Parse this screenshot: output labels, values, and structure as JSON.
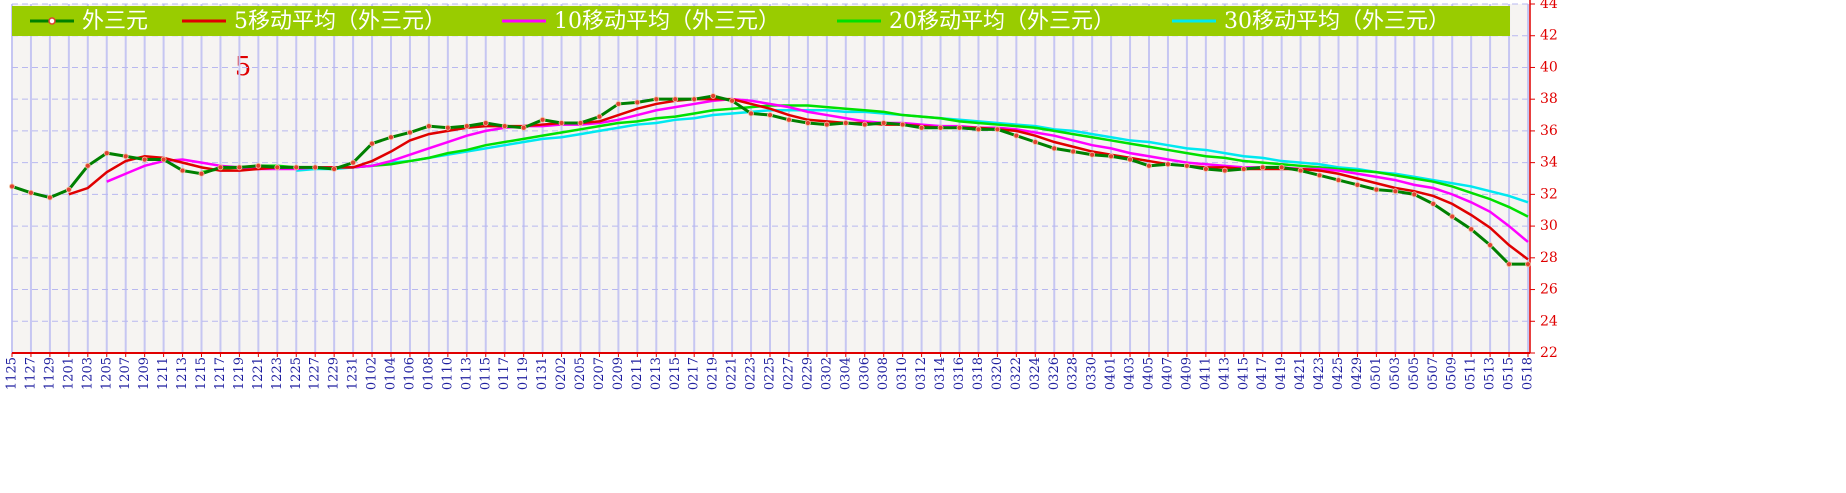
{
  "chart_data": {
    "type": "line",
    "annotation": "5",
    "categories": [
      "1125",
      "1127",
      "1129",
      "1201",
      "1203",
      "1205",
      "1207",
      "1209",
      "1211",
      "1213",
      "1215",
      "1217",
      "1219",
      "1221",
      "1223",
      "1225",
      "1227",
      "1229",
      "1231",
      "0102",
      "0104",
      "0106",
      "0108",
      "0110",
      "0113",
      "0115",
      "0117",
      "0119",
      "0131",
      "0202",
      "0205",
      "0207",
      "0209",
      "0211",
      "0213",
      "0215",
      "0217",
      "0219",
      "0221",
      "0223",
      "0225",
      "0227",
      "0229",
      "0302",
      "0304",
      "0306",
      "0308",
      "0310",
      "0312",
      "0314",
      "0316",
      "0318",
      "0320",
      "0322",
      "0324",
      "0326",
      "0328",
      "0330",
      "0401",
      "0403",
      "0405",
      "0407",
      "0409",
      "0411",
      "0413",
      "0415",
      "0417",
      "0419",
      "0421",
      "0423",
      "0425",
      "0429",
      "0501",
      "0503",
      "0505",
      "0507",
      "0509",
      "0511",
      "0513",
      "0515",
      "0518"
    ],
    "series": [
      {
        "name": "外三元",
        "color": "#008000",
        "marker": "circle",
        "values": [
          32.5,
          32.1,
          31.8,
          32.3,
          33.8,
          34.6,
          34.4,
          34.2,
          34.2,
          33.5,
          33.3,
          33.7,
          33.7,
          33.8,
          33.7,
          33.7,
          33.7,
          33.6,
          34.0,
          35.2,
          35.6,
          35.9,
          36.3,
          36.2,
          36.3,
          36.5,
          36.3,
          36.2,
          36.7,
          36.5,
          36.5,
          36.9,
          37.7,
          37.8,
          38.0,
          38.0,
          38.0,
          38.2,
          37.9,
          37.1,
          37.0,
          36.7,
          36.5,
          36.4,
          36.5,
          36.4,
          36.5,
          36.4,
          36.2,
          36.2,
          36.2,
          36.1,
          36.1,
          35.7,
          35.3,
          34.9,
          34.7,
          34.5,
          34.4,
          34.2,
          33.8,
          33.9,
          33.8,
          33.6,
          33.5,
          33.6,
          33.7,
          33.7,
          33.5,
          33.2,
          32.9,
          32.6,
          32.3,
          32.2,
          32.0,
          31.4,
          30.6,
          29.8,
          28.8,
          27.6,
          27.6
        ]
      },
      {
        "name": "5移动平均（外三元）",
        "color": "#e00000",
        "values": [
          null,
          null,
          null,
          32.0,
          32.4,
          33.4,
          34.1,
          34.4,
          34.3,
          34.0,
          33.7,
          33.5,
          33.5,
          33.6,
          33.7,
          33.7,
          33.7,
          33.7,
          33.7,
          34.1,
          34.7,
          35.4,
          35.8,
          36.0,
          36.2,
          36.3,
          36.3,
          36.3,
          36.4,
          36.5,
          36.5,
          36.6,
          37.0,
          37.4,
          37.7,
          37.9,
          38.0,
          38.0,
          38.0,
          37.7,
          37.4,
          37.0,
          36.7,
          36.6,
          36.5,
          36.5,
          36.4,
          36.4,
          36.3,
          36.2,
          36.2,
          36.2,
          36.1,
          36.0,
          35.7,
          35.3,
          35.0,
          34.7,
          34.5,
          34.3,
          34.1,
          33.9,
          33.8,
          33.7,
          33.7,
          33.6,
          33.6,
          33.6,
          33.6,
          33.5,
          33.3,
          33.0,
          32.7,
          32.4,
          32.2,
          31.9,
          31.4,
          30.7,
          29.9,
          28.8,
          27.9
        ]
      },
      {
        "name": "10移动平均（外三元）",
        "color": "#ff00ff",
        "values": [
          null,
          null,
          null,
          null,
          null,
          32.8,
          33.3,
          33.8,
          34.1,
          34.2,
          34.0,
          33.8,
          33.7,
          33.6,
          33.6,
          33.6,
          33.7,
          33.7,
          33.7,
          33.8,
          34.1,
          34.5,
          34.9,
          35.3,
          35.7,
          36.0,
          36.2,
          36.3,
          36.3,
          36.4,
          36.4,
          36.5,
          36.7,
          37.0,
          37.3,
          37.5,
          37.7,
          37.9,
          38.0,
          37.9,
          37.7,
          37.5,
          37.2,
          37.0,
          36.8,
          36.6,
          36.5,
          36.5,
          36.4,
          36.3,
          36.3,
          36.2,
          36.2,
          36.1,
          35.9,
          35.7,
          35.4,
          35.1,
          34.9,
          34.6,
          34.4,
          34.2,
          34.0,
          33.9,
          33.8,
          33.7,
          33.7,
          33.7,
          33.6,
          33.6,
          33.5,
          33.3,
          33.1,
          32.9,
          32.6,
          32.4,
          32.0,
          31.5,
          30.9,
          30.0,
          29.0
        ]
      },
      {
        "name": "20移动平均（外三元）",
        "color": "#00e000",
        "values": [
          null,
          null,
          null,
          null,
          null,
          null,
          null,
          null,
          null,
          null,
          33.4,
          33.6,
          33.7,
          33.8,
          33.8,
          33.7,
          33.7,
          33.7,
          33.7,
          33.8,
          33.9,
          34.1,
          34.3,
          34.6,
          34.8,
          35.1,
          35.3,
          35.5,
          35.7,
          35.9,
          36.1,
          36.3,
          36.5,
          36.6,
          36.8,
          36.9,
          37.1,
          37.3,
          37.4,
          37.5,
          37.6,
          37.6,
          37.6,
          37.5,
          37.4,
          37.3,
          37.2,
          37.0,
          36.9,
          36.8,
          36.6,
          36.5,
          36.4,
          36.3,
          36.2,
          36.0,
          35.8,
          35.6,
          35.4,
          35.2,
          35.0,
          34.8,
          34.6,
          34.4,
          34.3,
          34.1,
          34.0,
          33.9,
          33.8,
          33.7,
          33.6,
          33.5,
          33.4,
          33.2,
          33.0,
          32.8,
          32.5,
          32.1,
          31.7,
          31.2,
          30.6
        ]
      },
      {
        "name": "30移动平均（外三元）",
        "color": "#00e8f0",
        "values": [
          null,
          null,
          null,
          null,
          null,
          null,
          null,
          null,
          null,
          null,
          null,
          null,
          null,
          null,
          null,
          33.5,
          33.6,
          33.6,
          33.7,
          33.8,
          34.0,
          34.1,
          34.3,
          34.5,
          34.7,
          34.9,
          35.1,
          35.3,
          35.5,
          35.6,
          35.8,
          36.0,
          36.2,
          36.4,
          36.5,
          36.7,
          36.8,
          37.0,
          37.1,
          37.2,
          37.3,
          37.3,
          37.3,
          37.3,
          37.2,
          37.2,
          37.1,
          37.0,
          36.9,
          36.8,
          36.7,
          36.6,
          36.5,
          36.4,
          36.3,
          36.1,
          36.0,
          35.8,
          35.6,
          35.4,
          35.3,
          35.1,
          34.9,
          34.8,
          34.6,
          34.4,
          34.3,
          34.1,
          34.0,
          33.9,
          33.7,
          33.6,
          33.4,
          33.3,
          33.1,
          32.9,
          32.7,
          32.5,
          32.2,
          31.9,
          31.5
        ]
      }
    ],
    "ylim": [
      22,
      44
    ],
    "yticks": [
      22,
      24,
      26,
      28,
      30,
      32,
      34,
      36,
      38,
      40,
      42,
      44
    ],
    "grid": true,
    "legend_position": "top",
    "legend_color": "#99cc00",
    "axis_color": "#e00000"
  }
}
